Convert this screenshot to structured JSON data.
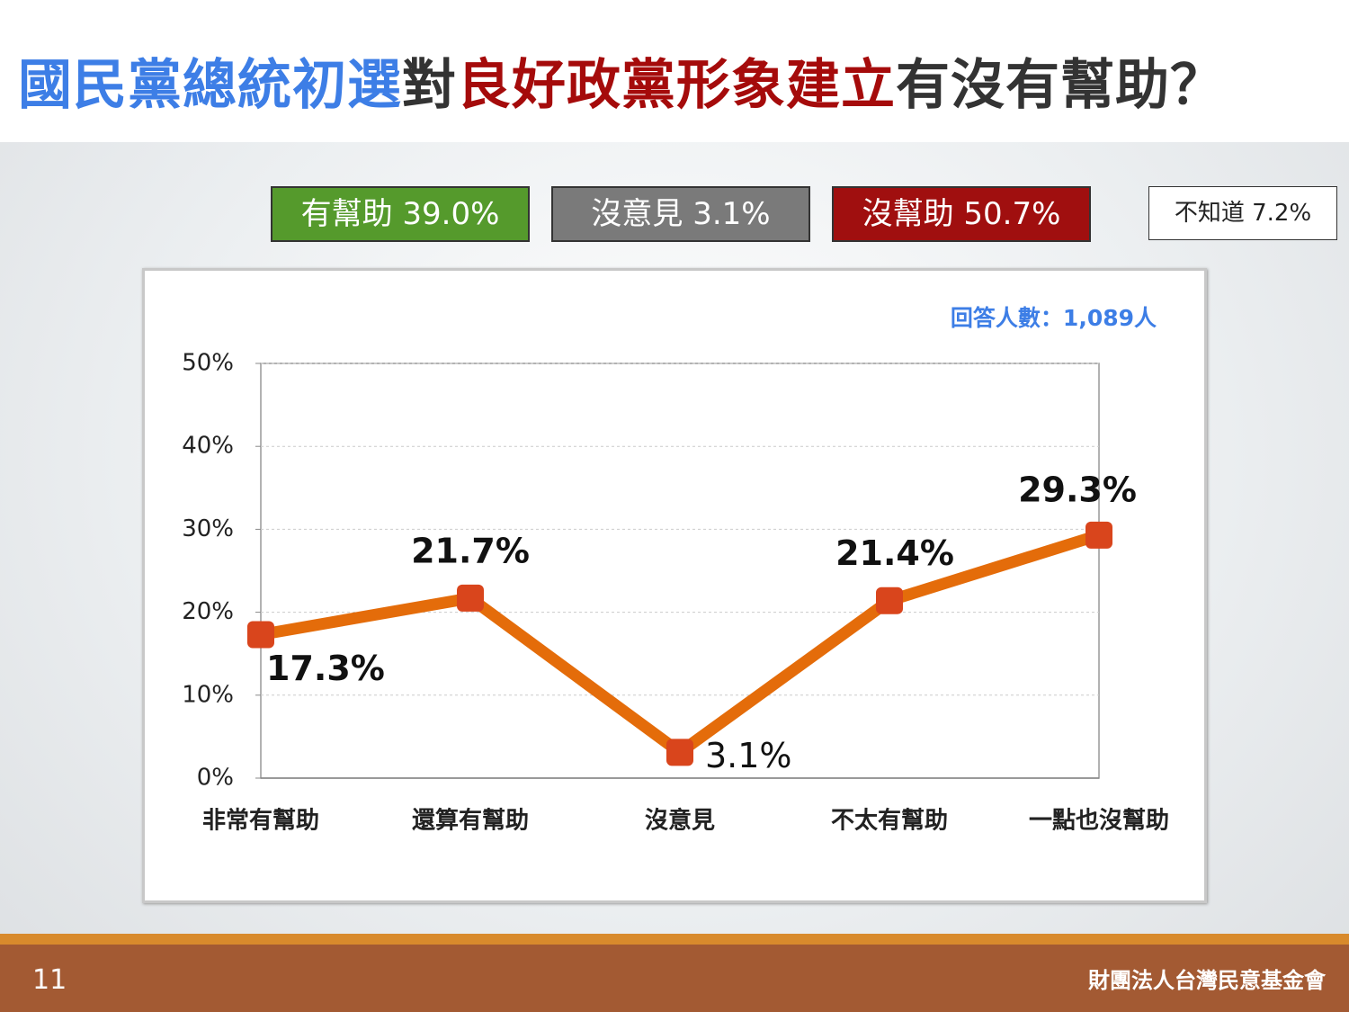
{
  "title_segments": [
    "國民黨總統初選",
    "對",
    "良好政黨形象建立",
    "有沒有幫助？"
  ],
  "summary": [
    "有幫助 39.0%",
    "沒意見 3.1%",
    "沒幫助 50.7%",
    "不知道 7.2%"
  ],
  "chart_data": {
    "type": "line",
    "annotation": "回答人數：1,089人",
    "categories": [
      "非常有幫助",
      "還算有幫助",
      "沒意見",
      "不太有幫助",
      "一點也沒幫助"
    ],
    "values": [
      17.3,
      21.7,
      3.1,
      21.4,
      29.3
    ],
    "value_labels": [
      "17.3%",
      "21.7%",
      "3.1%",
      "21.4%",
      "29.3%"
    ],
    "color": "#e46c0a",
    "marker_color": "#d9451c",
    "ylim": [
      0,
      50
    ],
    "yticks": [
      {
        "value": 0,
        "label": "0%"
      },
      {
        "value": 10,
        "label": "10%"
      },
      {
        "value": 20,
        "label": "20%"
      },
      {
        "value": 30,
        "label": "30%"
      },
      {
        "value": 40,
        "label": "40%"
      },
      {
        "value": 50,
        "label": "50%"
      }
    ],
    "grid": true
  },
  "footer": {
    "page": "11",
    "org": "財團法人台灣民意基金會"
  }
}
